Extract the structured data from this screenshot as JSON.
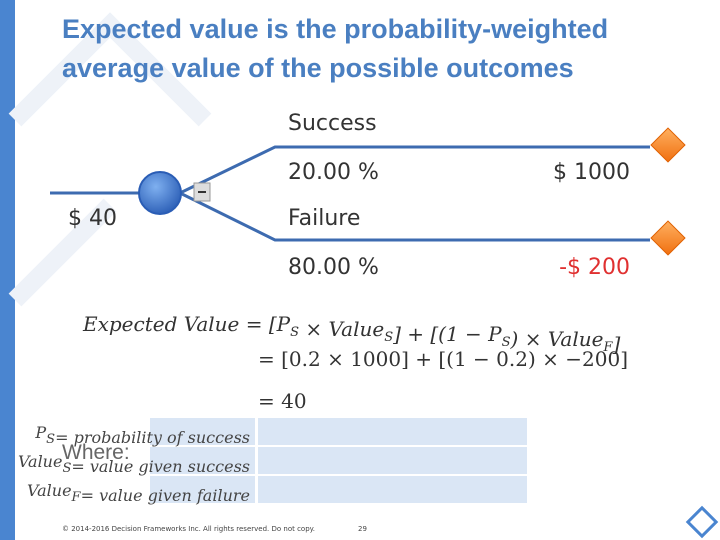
{
  "header": {
    "title_lines": [
      "Expected value is the probability-weighted",
      "average value of the possible outcomes"
    ]
  },
  "tree": {
    "root_value": "$ 40",
    "branches": [
      {
        "label": "Success",
        "probability": "20.00 %",
        "payoff": "$ 1000"
      },
      {
        "label": "Failure",
        "probability": "80.00 %",
        "payoff": "-$ 200"
      }
    ]
  },
  "equation": {
    "lines": [
      [
        "Expected Value = [",
        {
          "text": "P",
          "sub": "S"
        },
        " × ",
        {
          "text": "Value",
          "sub": "S"
        },
        "] + [(1 − ",
        {
          "text": "P",
          "sub": "S"
        },
        ") × ",
        {
          "text": "Value",
          "sub": "F"
        },
        "]"
      ],
      [
        "= [0.2 × 1000] + [(1 − 0.2) × −200]"
      ],
      [
        "= 40"
      ]
    ]
  },
  "where": {
    "label": "Where:",
    "rows": [
      [
        {
          "text": "P",
          "sub": "S"
        },
        "= probability of success"
      ],
      [
        {
          "text": "Value",
          "sub": "S"
        },
        "= value given success"
      ],
      [
        {
          "text": "Value",
          "sub": "F"
        },
        "= value given failure"
      ]
    ]
  },
  "footer": {
    "copyright": "© 2014-2016 Decision Frameworks Inc. All rights reserved. Do not copy.",
    "page": "29"
  }
}
